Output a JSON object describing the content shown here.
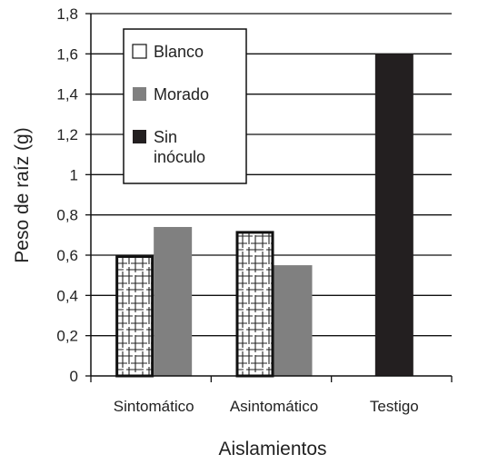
{
  "chart_data": {
    "type": "bar",
    "xlabel": "Aislamientos",
    "ylabel": "Peso de raíz (g)",
    "ylim": [
      0,
      1.8
    ],
    "yticks": [
      0,
      0.2,
      0.4,
      0.6,
      0.8,
      1,
      1.2,
      1.4,
      1.6,
      1.8
    ],
    "ytick_labels": [
      "0",
      "0,2",
      "0,4",
      "0,6",
      "0,8",
      "1",
      "1,2",
      "1,4",
      "1,6",
      "1,8"
    ],
    "categories": [
      "Sintomático",
      "Asintomático",
      "Testigo"
    ],
    "grid": "horizontal",
    "legend_position": "top-left",
    "series": [
      {
        "name": "Blanco",
        "values": [
          0.6,
          0.72,
          null
        ],
        "color": "#ffffff",
        "pattern": "crosshatch-lines"
      },
      {
        "name": "Morado",
        "values": [
          0.74,
          0.55,
          null
        ],
        "color": "#808080"
      },
      {
        "name": "Sin\ninóculo",
        "values": [
          null,
          null,
          1.6
        ],
        "color": "#231f20"
      }
    ]
  }
}
